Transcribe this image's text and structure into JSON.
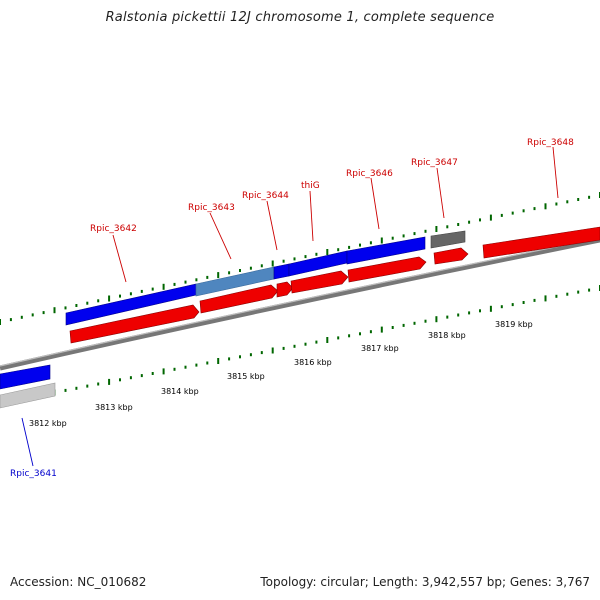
{
  "title": "Ralstonia pickettii 12J chromosome 1, complete sequence",
  "footer": {
    "accession": "Accession: NC_010682",
    "topology": "Topology: circular; Length: 3,942,557 bp; Genes: 3,767"
  },
  "colors": {
    "forward_cds": "#0000ee",
    "reverse_cds": "#ee0000",
    "pseudo_forward": "#4682b4",
    "pseudo_reverse": "#666666",
    "faded": "#bbbbbb",
    "tick": "#006600",
    "backbone": "#888888",
    "label_forward": "#cc0000",
    "label_reverse": "#0000cc"
  },
  "scale_labels": [
    "3812 kbp",
    "3813 kbp",
    "3814 kbp",
    "3815 kbp",
    "3816 kbp",
    "3817 kbp",
    "3818 kbp",
    "3819 kbp"
  ],
  "gene_labels": [
    {
      "name": "Rpic_3641",
      "color": "#0000cc"
    },
    {
      "name": "Rpic_3642",
      "color": "#cc0000"
    },
    {
      "name": "Rpic_3643",
      "color": "#cc0000"
    },
    {
      "name": "Rpic_3644",
      "color": "#cc0000"
    },
    {
      "name": "thiG",
      "color": "#cc0000"
    },
    {
      "name": "Rpic_3646",
      "color": "#cc0000"
    },
    {
      "name": "Rpic_3647",
      "color": "#cc0000"
    },
    {
      "name": "Rpic_3648",
      "color": "#cc0000"
    }
  ]
}
